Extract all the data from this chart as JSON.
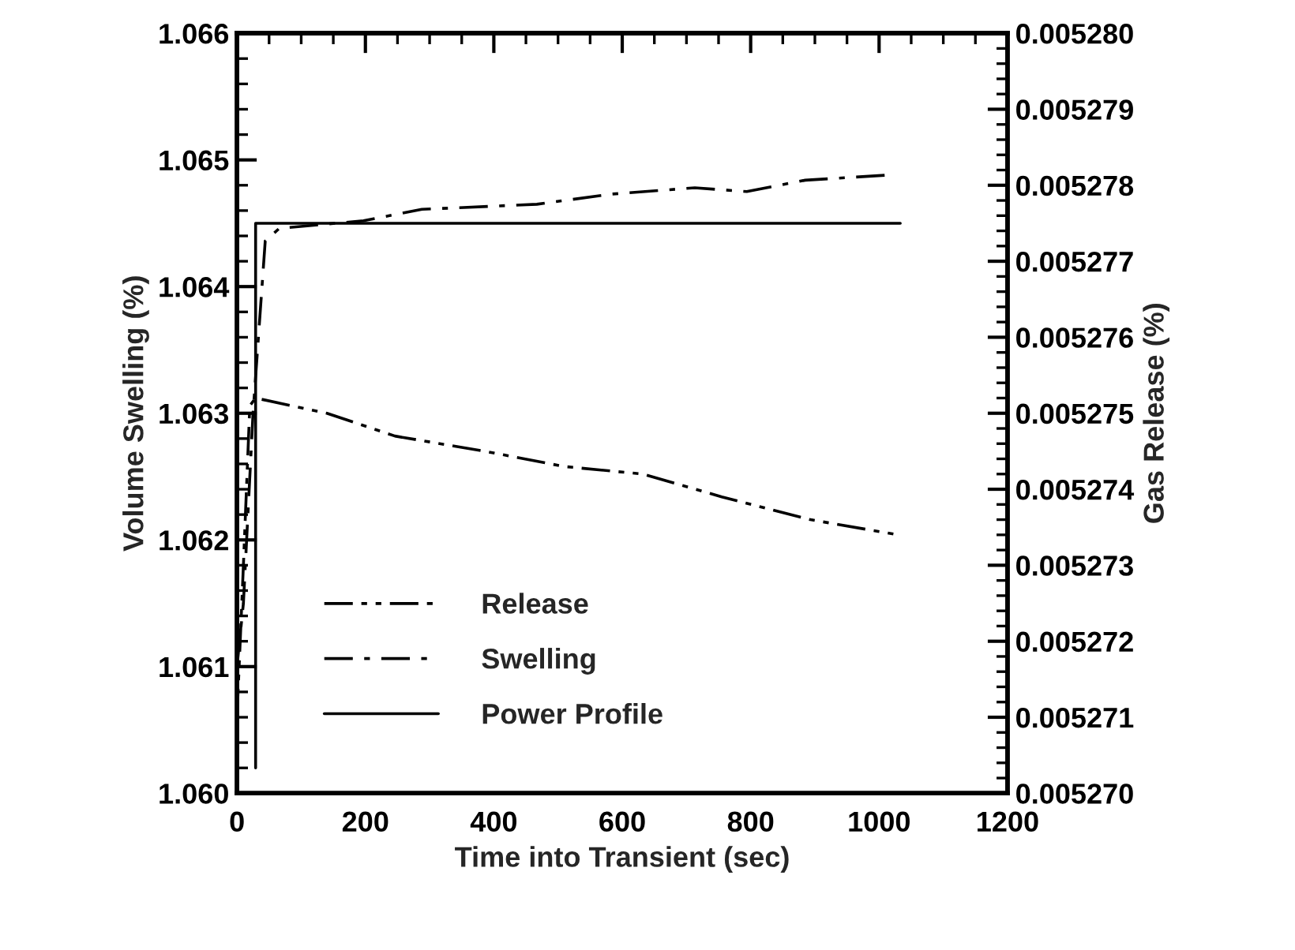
{
  "chart_data": {
    "type": "line",
    "xlabel": "Time into Transient (sec)",
    "ylabel": "Volume Swelling (%)",
    "y2label": "Gas Release (%)",
    "xlim": [
      0,
      1200
    ],
    "xticks": [
      0,
      200,
      400,
      600,
      800,
      1000,
      1200
    ],
    "ylim": [
      1.06,
      1.066
    ],
    "yticks": [
      {
        "value": 1.06,
        "label": "1.060"
      },
      1.061,
      1.062,
      1.063,
      1.064,
      1.065,
      1.066
    ],
    "y2lim": [
      0.00527,
      0.00528
    ],
    "y2ticks": [
      {
        "value": 0.00527,
        "label": "0.005270"
      },
      0.005271,
      0.005272,
      0.005273,
      0.005274,
      0.005275,
      0.005276,
      0.005277,
      0.005278,
      0.005279,
      {
        "value": 0.00528,
        "label": "0.005280"
      }
    ],
    "legend": "bottom left",
    "grid": false,
    "series": [
      {
        "name": "Release",
        "color": "#000000",
        "line_style": "dashdotdot",
        "axis": "y2",
        "x": [
          0,
          10,
          20,
          29,
          140,
          246,
          386,
          509,
          632,
          755,
          893,
          1030
        ],
        "values": [
          0.005271,
          0.005273,
          0.0052751,
          0.0052752,
          0.005275,
          0.0052747,
          0.0052745,
          0.0052743,
          0.0052742,
          0.0052739,
          0.0052736,
          0.0052734
        ]
      },
      {
        "name": "Swelling",
        "color": "#000000",
        "line_style": "dashdot",
        "x": [
          0,
          10,
          25,
          44,
          66,
          197,
          288,
          467,
          583,
          713,
          794,
          885,
          1013
        ],
        "values": [
          1.061,
          1.0615,
          1.063,
          1.06436,
          1.06446,
          1.06452,
          1.06461,
          1.06465,
          1.06473,
          1.06478,
          1.06475,
          1.06484,
          1.06488
        ]
      },
      {
        "name": "Power Profile",
        "color": "#000000",
        "line_style": "solid",
        "x": [
          29,
          29,
          1033
        ],
        "values": [
          1.0602,
          1.0645,
          1.0645
        ]
      }
    ]
  }
}
